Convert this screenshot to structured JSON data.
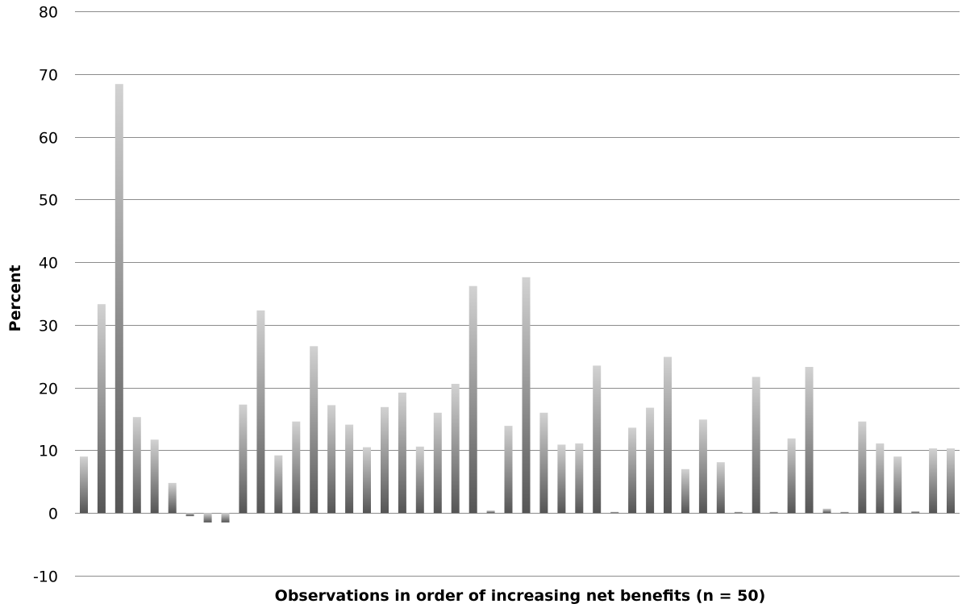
{
  "chart_data": {
    "type": "bar",
    "xlabel": "Observations in order of increasing net benefits (n = 50)",
    "ylabel": "Percent",
    "ylim": [
      -10,
      80
    ],
    "yticks": [
      -10,
      0,
      10,
      20,
      30,
      40,
      50,
      60,
      70,
      80
    ],
    "grid": true,
    "legend": "none",
    "bar_color_top": "#d2d2d2",
    "bar_color_bottom": "#555555",
    "values": [
      9,
      33.3,
      68.4,
      15.3,
      11.7,
      4.8,
      -0.5,
      -1.5,
      -1.5,
      17.3,
      32.3,
      9.2,
      14.6,
      26.6,
      17.2,
      14.1,
      10.5,
      16.9,
      19.2,
      10.6,
      16,
      20.6,
      36.2,
      0.4,
      13.9,
      37.6,
      16,
      10.9,
      11.1,
      23.5,
      0,
      13.6,
      16.8,
      24.9,
      7,
      14.9,
      8.1,
      0,
      21.7,
      0,
      11.9,
      23.3,
      0.7,
      0,
      14.6,
      11.1,
      9,
      0.3,
      10.3,
      10.3
    ]
  }
}
